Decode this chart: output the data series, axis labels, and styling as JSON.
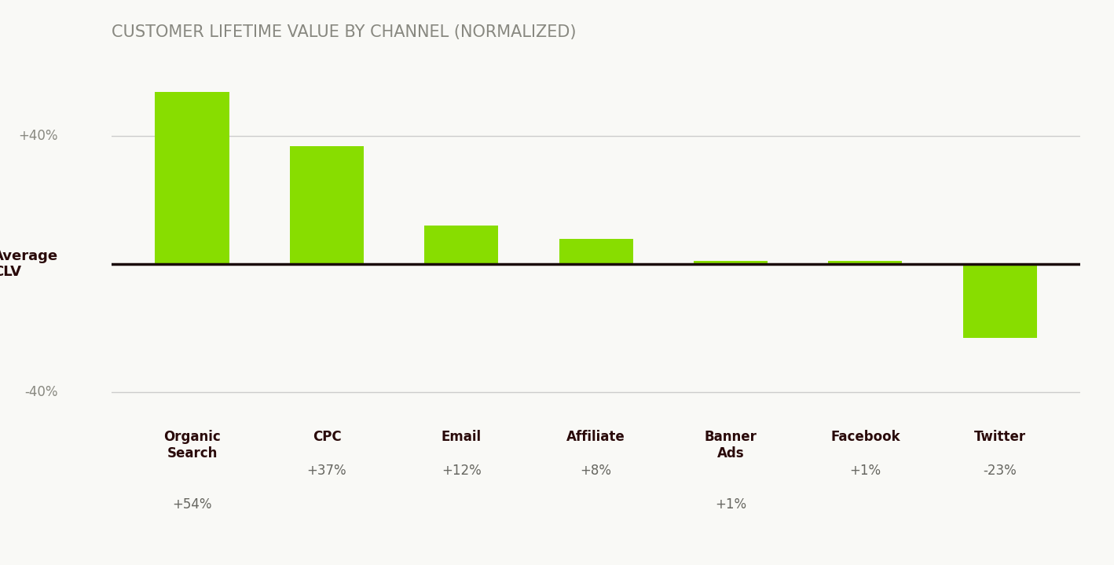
{
  "title": "CUSTOMER LIFETIME VALUE BY CHANNEL (NORMALIZED)",
  "categories": [
    "Organic\nSearch",
    "CPC",
    "Email",
    "Affiliate",
    "Banner\nAds",
    "Facebook",
    "Twitter"
  ],
  "values": [
    54,
    37,
    12,
    8,
    1,
    1,
    -23
  ],
  "bar_color": "#88DD00",
  "background_color": "#f9f9f6",
  "title_color": "#888880",
  "axis_line_color": "#1a0a0a",
  "grid_color": "#cccccc",
  "label_name_color": "#2a0a0a",
  "label_pct_color": "#666660",
  "ylabel_text": "Average\nCLV",
  "ylim": [
    -50,
    65
  ],
  "yticks": [
    -40,
    0,
    40
  ],
  "bar_width": 0.55,
  "xlabel_names": [
    "Organic\nSearch",
    "CPC",
    "Email",
    "Affiliate",
    "Banner\nAds",
    "Facebook",
    "Twitter"
  ],
  "xlabel_pcts": [
    "+54%",
    "+37%",
    "+12%",
    "+8%",
    "+1%",
    "+1%",
    "-23%"
  ],
  "figsize": [
    14.18,
    7.19
  ],
  "dpi": 100
}
